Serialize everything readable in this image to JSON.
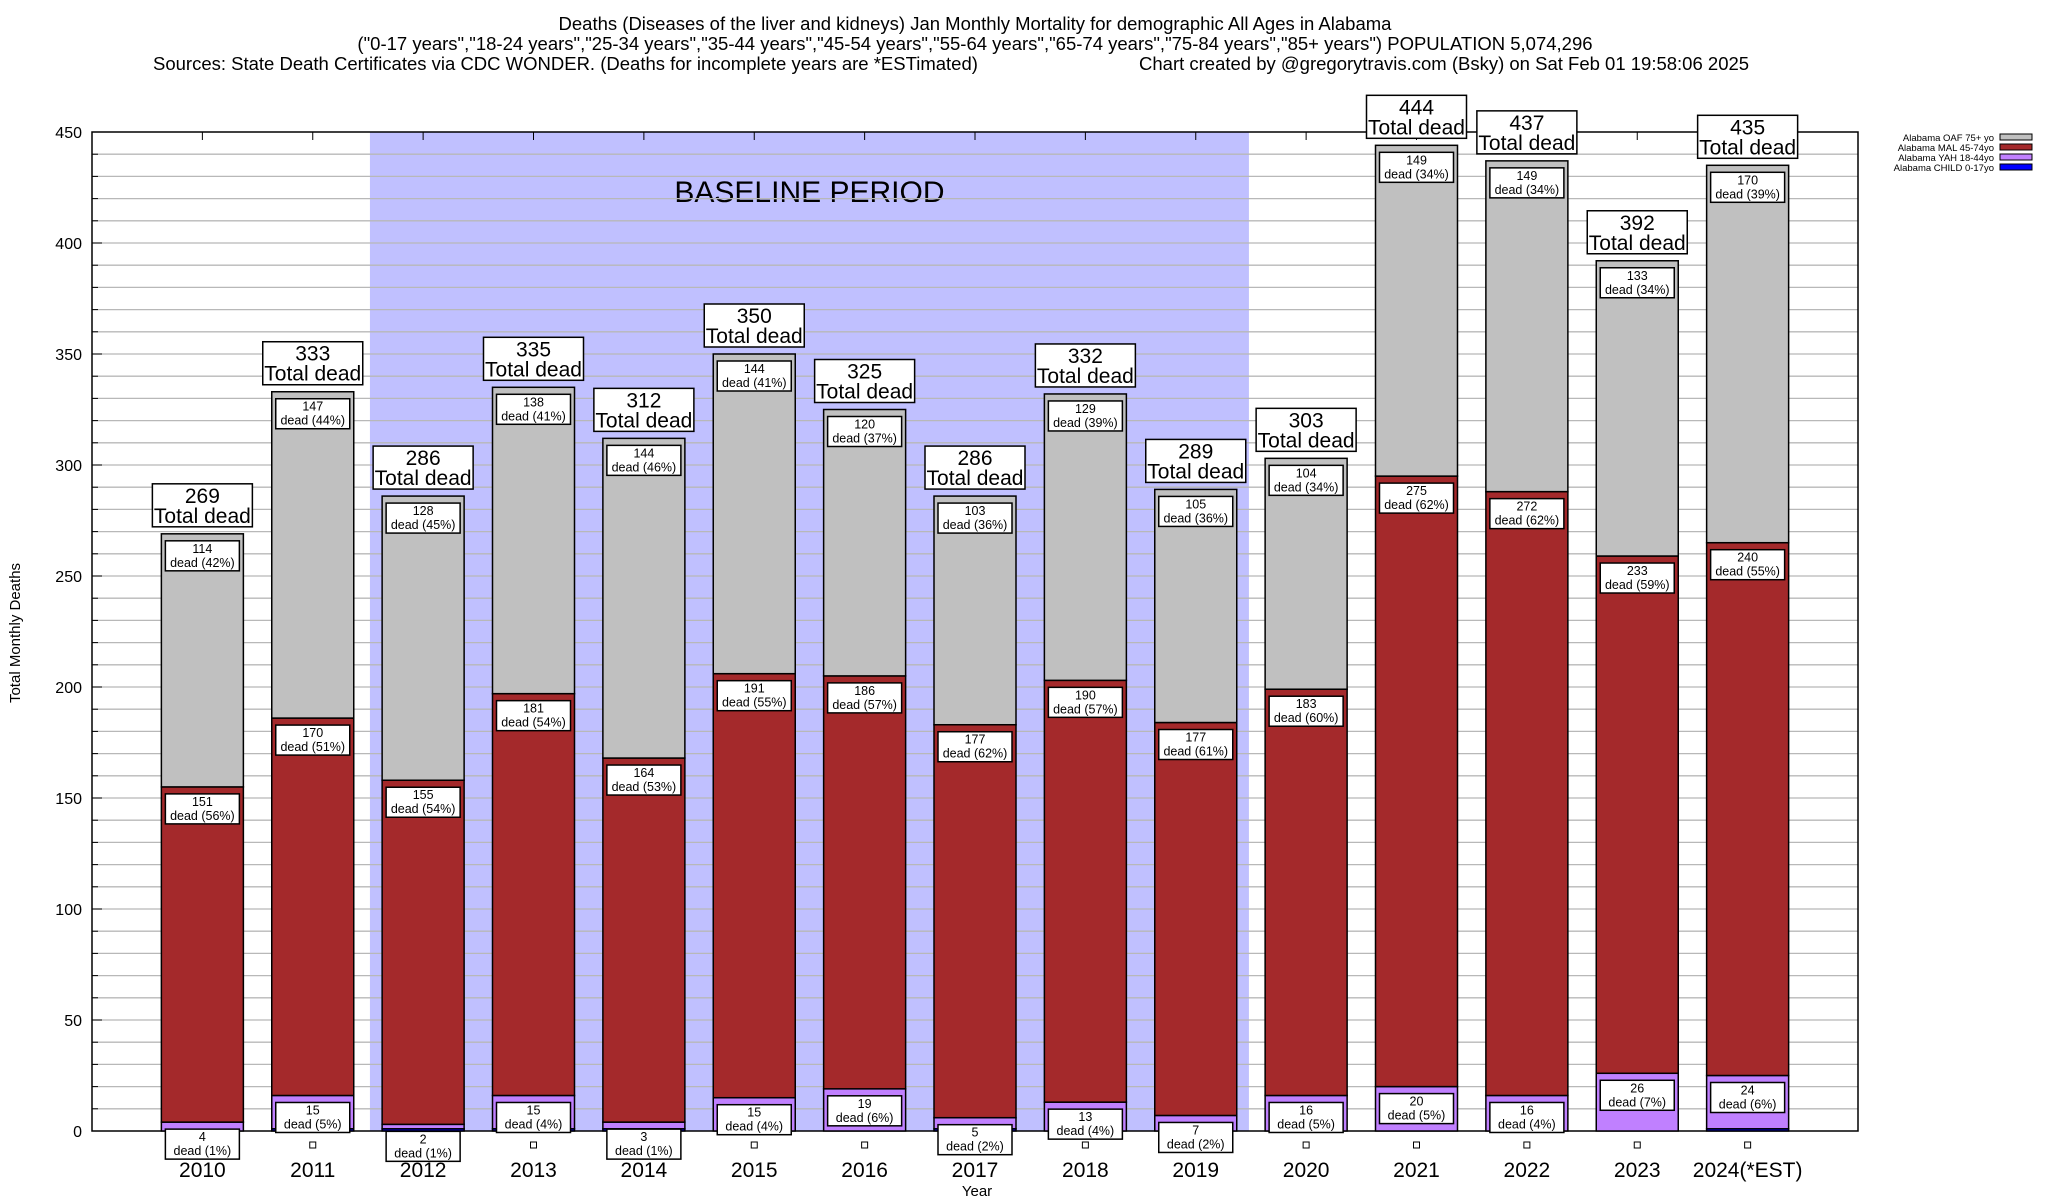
{
  "title": {
    "line1": "Deaths (Diseases of the liver and kidneys) Jan Monthly Mortality for demographic All Ages in Alabama",
    "line2": "(\"0-17 years\",\"18-24 years\",\"25-34 years\",\"35-44 years\",\"45-54 years\",\"55-64 years\",\"65-74 years\",\"75-84 years\",\"85+ years\") POPULATION 5,074,296",
    "line3_left": "Sources: State Death Certificates via CDC WONDER. (Deaths for incomplete years are *ESTimated)",
    "line3_right": "Chart created by @gregorytravis.com (Bsky) on Sat Feb 01 19:58:06 2025"
  },
  "chart_data": {
    "type": "bar",
    "stacked": true,
    "xlabel": "Year",
    "ylabel": "Total Monthly Deaths",
    "ylim": [
      0,
      450
    ],
    "yticks": [
      0,
      50,
      100,
      150,
      200,
      250,
      300,
      350,
      400,
      450
    ],
    "grid": true,
    "legend_position": "top-right",
    "annotation": {
      "text": "BASELINE PERIOD",
      "from": "2012",
      "to": "2019",
      "color": "#c0c0ff"
    },
    "total_label": "Total dead",
    "segment_label": "dead",
    "categories": [
      "2010",
      "2011",
      "2012",
      "2013",
      "2014",
      "2015",
      "2016",
      "2017",
      "2018",
      "2019",
      "2020",
      "2021",
      "2022",
      "2023",
      "2024(*EST)"
    ],
    "totals": [
      269,
      333,
      286,
      335,
      312,
      350,
      325,
      286,
      332,
      289,
      303,
      444,
      437,
      392,
      435
    ],
    "series": [
      {
        "name": "Alabama CHILD 0-17yo",
        "color": "#0000ff",
        "values": [
          0,
          1,
          1,
          1,
          1,
          0,
          0,
          1,
          0,
          0,
          0,
          0,
          0,
          0,
          1
        ]
      },
      {
        "name": "Alabama YAH 18-44yo",
        "color": "#c080ff",
        "values": [
          4,
          15,
          2,
          15,
          3,
          15,
          19,
          5,
          13,
          7,
          16,
          20,
          16,
          26,
          24
        ],
        "percents": [
          1,
          5,
          1,
          4,
          1,
          4,
          6,
          2,
          4,
          2,
          5,
          5,
          4,
          7,
          6
        ]
      },
      {
        "name": "Alabama MAL 45-74yo",
        "color": "#a4292b",
        "values": [
          151,
          170,
          155,
          181,
          164,
          191,
          186,
          177,
          190,
          177,
          183,
          275,
          272,
          233,
          240
        ],
        "percents": [
          56,
          51,
          54,
          54,
          53,
          55,
          57,
          62,
          57,
          61,
          60,
          62,
          62,
          59,
          55
        ]
      },
      {
        "name": "Alabama OAF 75+ yo",
        "color": "#c0c0c0",
        "values": [
          114,
          147,
          128,
          138,
          144,
          144,
          120,
          103,
          129,
          105,
          104,
          149,
          149,
          133,
          170
        ],
        "percents": [
          42,
          44,
          45,
          41,
          46,
          41,
          37,
          36,
          39,
          36,
          34,
          34,
          34,
          34,
          39
        ]
      }
    ]
  }
}
